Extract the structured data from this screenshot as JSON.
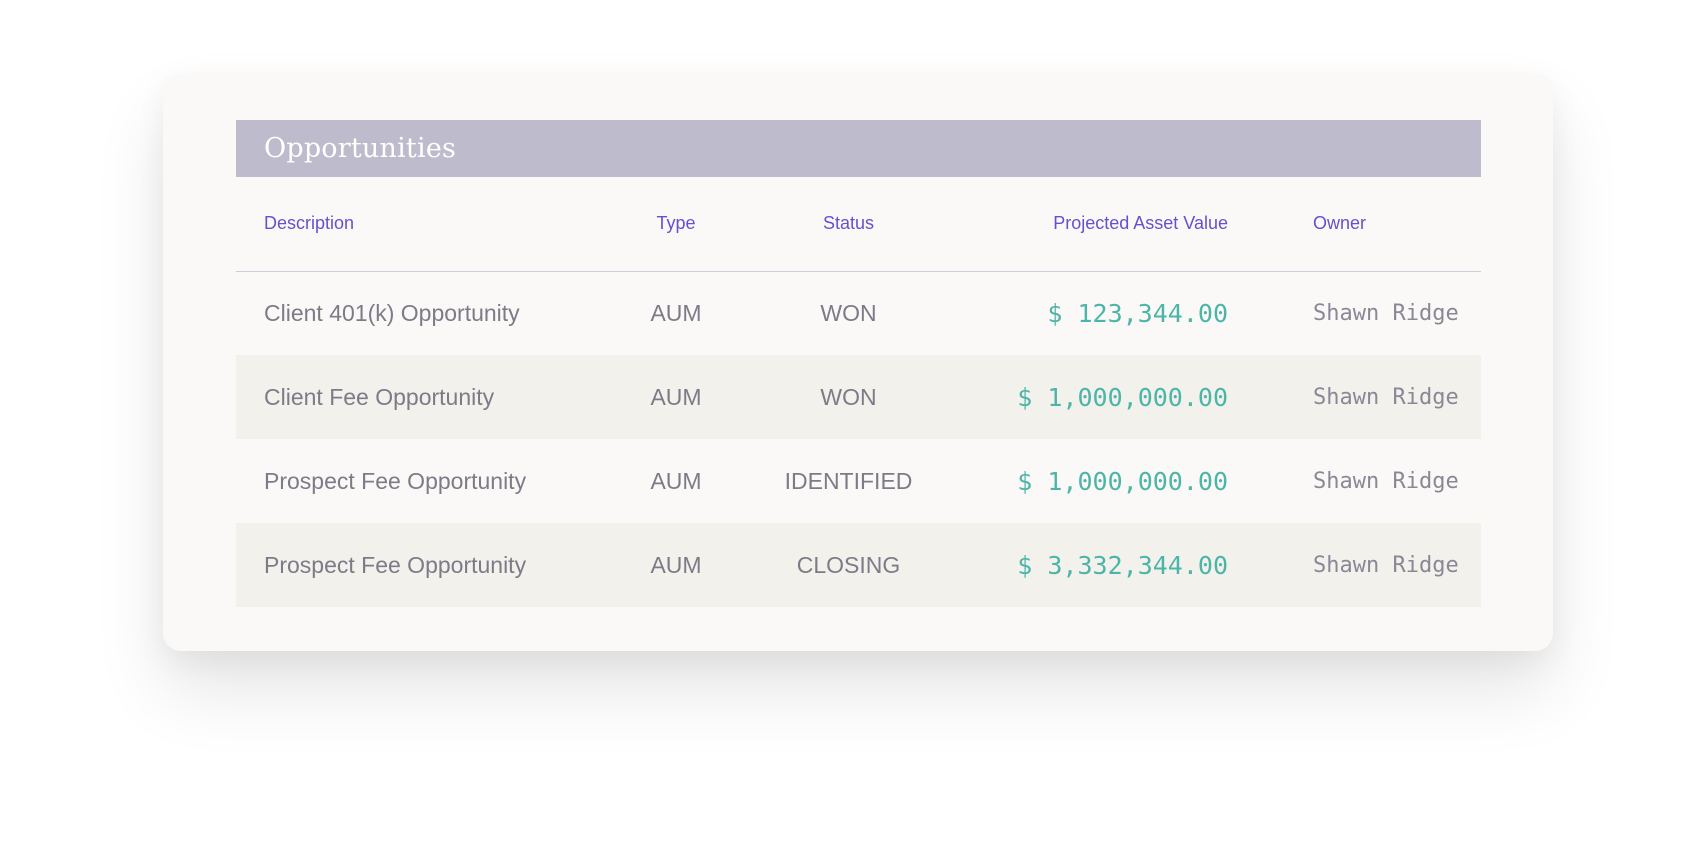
{
  "panel": {
    "title": "Opportunities"
  },
  "table": {
    "columns": [
      "Description",
      "Type",
      "Status",
      "Projected Asset Value",
      "Owner"
    ],
    "rows": [
      {
        "description": "Client 401(k) Opportunity",
        "type": "AUM",
        "status": "WON",
        "value": "$ 123,344.00",
        "owner": "Shawn Ridge"
      },
      {
        "description": "Client Fee Opportunity",
        "type": "AUM",
        "status": "WON",
        "value": "$ 1,000,000.00",
        "owner": "Shawn Ridge"
      },
      {
        "description": "Prospect Fee Opportunity",
        "type": "AUM",
        "status": "IDENTIFIED",
        "value": "$ 1,000,000.00",
        "owner": "Shawn Ridge"
      },
      {
        "description": "Prospect Fee Opportunity",
        "type": "AUM",
        "status": "CLOSING",
        "value": "$ 3,332,344.00",
        "owner": "Shawn Ridge"
      }
    ]
  },
  "colors": {
    "header_bg": "#bdbbcc",
    "column_header_text": "#6352cf",
    "value_text": "#4db5a7",
    "striped_row_bg": "#f2f1ec"
  }
}
